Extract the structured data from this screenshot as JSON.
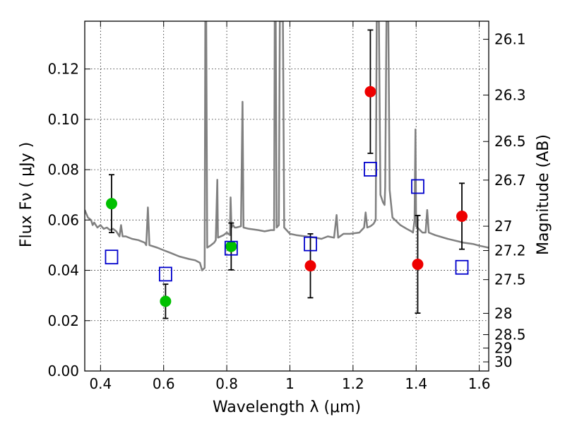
{
  "chart_data": {
    "type": "scatter",
    "title": "",
    "xlabel": "Wavelength  λ (μm)",
    "ylabel": "Flux  Fν  ( μJy )",
    "ylabel_right": "Magnitude (AB)",
    "xlim": [
      0.35,
      1.63
    ],
    "ylim": [
      0,
      0.139
    ],
    "grid": true,
    "x_ticks": [
      {
        "value": 0.4,
        "label": "0.4"
      },
      {
        "value": 0.6,
        "label": "0.6"
      },
      {
        "value": 0.8,
        "label": "0.8"
      },
      {
        "value": 1.0,
        "label": "1"
      },
      {
        "value": 1.2,
        "label": "1.2"
      },
      {
        "value": 1.4,
        "label": "1.4"
      },
      {
        "value": 1.6,
        "label": "1.6"
      }
    ],
    "y_ticks": [
      {
        "value": 0.0,
        "label": "0.00"
      },
      {
        "value": 0.02,
        "label": "0.02"
      },
      {
        "value": 0.04,
        "label": "0.04"
      },
      {
        "value": 0.06,
        "label": "0.06"
      },
      {
        "value": 0.08,
        "label": "0.08"
      },
      {
        "value": 0.1,
        "label": "0.10"
      },
      {
        "value": 0.12,
        "label": "0.12"
      }
    ],
    "mag_ticks": [
      {
        "value": 26.1,
        "label": "26.1"
      },
      {
        "value": 26.3,
        "label": "26.3"
      },
      {
        "value": 26.5,
        "label": "26.5"
      },
      {
        "value": 26.7,
        "label": "26.7"
      },
      {
        "value": 27.0,
        "label": "27"
      },
      {
        "value": 27.2,
        "label": "27.2"
      },
      {
        "value": 27.5,
        "label": "27.5"
      },
      {
        "value": 28.0,
        "label": "28"
      },
      {
        "value": 28.5,
        "label": "28.5"
      },
      {
        "value": 29.0,
        "label": "29"
      },
      {
        "value": 30.0,
        "label": "30"
      }
    ],
    "series": [
      {
        "marker": "circle",
        "color": "#00c000",
        "points": [
          {
            "x": 0.435,
            "y": 0.0665,
            "err": 0.0115
          },
          {
            "x": 0.606,
            "y": 0.0277,
            "err": 0.0068
          },
          {
            "x": 0.814,
            "y": 0.0495,
            "err": 0.0093
          }
        ]
      },
      {
        "marker": "circle",
        "color": "#ee0000",
        "points": [
          {
            "x": 1.065,
            "y": 0.0418,
            "err": 0.0127
          },
          {
            "x": 1.255,
            "y": 0.111,
            "err": 0.0245
          },
          {
            "x": 1.405,
            "y": 0.0424,
            "err": 0.0194
          },
          {
            "x": 1.545,
            "y": 0.0615,
            "err": 0.0131
          }
        ]
      },
      {
        "marker": "square-open",
        "color": "#0000cc",
        "points": [
          {
            "x": 0.435,
            "y": 0.0453
          },
          {
            "x": 0.606,
            "y": 0.0385
          },
          {
            "x": 0.814,
            "y": 0.0488
          },
          {
            "x": 1.065,
            "y": 0.0505
          },
          {
            "x": 1.255,
            "y": 0.0802
          },
          {
            "x": 1.405,
            "y": 0.0733
          },
          {
            "x": 1.545,
            "y": 0.0412
          }
        ]
      }
    ],
    "model_spectrum": {
      "color": "#808080",
      "points": [
        [
          0.35,
          0.064
        ],
        [
          0.36,
          0.061
        ],
        [
          0.37,
          0.06
        ],
        [
          0.375,
          0.058
        ],
        [
          0.38,
          0.059
        ],
        [
          0.39,
          0.057
        ],
        [
          0.4,
          0.058
        ],
        [
          0.41,
          0.0565
        ],
        [
          0.42,
          0.057
        ],
        [
          0.43,
          0.056
        ],
        [
          0.44,
          0.0565
        ],
        [
          0.45,
          0.0555
        ],
        [
          0.46,
          0.0535
        ],
        [
          0.465,
          0.058
        ],
        [
          0.47,
          0.0535
        ],
        [
          0.48,
          0.0535
        ],
        [
          0.5,
          0.0525
        ],
        [
          0.52,
          0.052
        ],
        [
          0.54,
          0.051
        ],
        [
          0.545,
          0.05
        ],
        [
          0.55,
          0.065
        ],
        [
          0.555,
          0.05
        ],
        [
          0.58,
          0.049
        ],
        [
          0.6,
          0.048
        ],
        [
          0.62,
          0.047
        ],
        [
          0.65,
          0.0455
        ],
        [
          0.68,
          0.0445
        ],
        [
          0.7,
          0.044
        ],
        [
          0.715,
          0.043
        ],
        [
          0.722,
          0.04
        ],
        [
          0.73,
          0.041
        ],
        [
          0.732,
          0.139
        ],
        [
          0.735,
          0.139
        ],
        [
          0.738,
          0.049
        ],
        [
          0.75,
          0.05
        ],
        [
          0.76,
          0.051
        ],
        [
          0.765,
          0.052
        ],
        [
          0.77,
          0.076
        ],
        [
          0.772,
          0.053
        ],
        [
          0.79,
          0.054
        ],
        [
          0.8,
          0.055
        ],
        [
          0.81,
          0.054
        ],
        [
          0.812,
          0.069
        ],
        [
          0.815,
          0.057
        ],
        [
          0.82,
          0.058
        ],
        [
          0.825,
          0.057
        ],
        [
          0.83,
          0.057
        ],
        [
          0.845,
          0.0575
        ],
        [
          0.85,
          0.107
        ],
        [
          0.853,
          0.057
        ],
        [
          0.87,
          0.0565
        ],
        [
          0.9,
          0.056
        ],
        [
          0.92,
          0.0555
        ],
        [
          0.94,
          0.056
        ],
        [
          0.95,
          0.056
        ],
        [
          0.952,
          0.139
        ],
        [
          0.955,
          0.139
        ],
        [
          0.958,
          0.057
        ],
        [
          0.965,
          0.058
        ],
        [
          0.968,
          0.139
        ],
        [
          0.972,
          0.139
        ],
        [
          0.975,
          0.139
        ],
        [
          0.978,
          0.139
        ],
        [
          0.982,
          0.057
        ],
        [
          1.0,
          0.0545
        ],
        [
          1.02,
          0.054
        ],
        [
          1.05,
          0.0535
        ],
        [
          1.08,
          0.053
        ],
        [
          1.1,
          0.0525
        ],
        [
          1.12,
          0.0535
        ],
        [
          1.14,
          0.053
        ],
        [
          1.148,
          0.062
        ],
        [
          1.153,
          0.053
        ],
        [
          1.17,
          0.0545
        ],
        [
          1.19,
          0.0545
        ],
        [
          1.22,
          0.055
        ],
        [
          1.235,
          0.057
        ],
        [
          1.24,
          0.063
        ],
        [
          1.245,
          0.057
        ],
        [
          1.255,
          0.0575
        ],
        [
          1.26,
          0.058
        ],
        [
          1.265,
          0.0585
        ],
        [
          1.272,
          0.06
        ],
        [
          1.275,
          0.139
        ],
        [
          1.282,
          0.139
        ],
        [
          1.287,
          0.07
        ],
        [
          1.295,
          0.067
        ],
        [
          1.3,
          0.066
        ],
        [
          1.302,
          0.073
        ],
        [
          1.306,
          0.139
        ],
        [
          1.312,
          0.139
        ],
        [
          1.316,
          0.072
        ],
        [
          1.325,
          0.061
        ],
        [
          1.35,
          0.058
        ],
        [
          1.37,
          0.0565
        ],
        [
          1.385,
          0.0555
        ],
        [
          1.39,
          0.055
        ],
        [
          1.395,
          0.06
        ],
        [
          1.398,
          0.096
        ],
        [
          1.4,
          0.0575
        ],
        [
          1.42,
          0.055
        ],
        [
          1.43,
          0.055
        ],
        [
          1.435,
          0.064
        ],
        [
          1.44,
          0.055
        ],
        [
          1.46,
          0.054
        ],
        [
          1.5,
          0.0525
        ],
        [
          1.55,
          0.051
        ],
        [
          1.58,
          0.0505
        ],
        [
          1.6,
          0.0498
        ],
        [
          1.63,
          0.049
        ]
      ]
    }
  }
}
